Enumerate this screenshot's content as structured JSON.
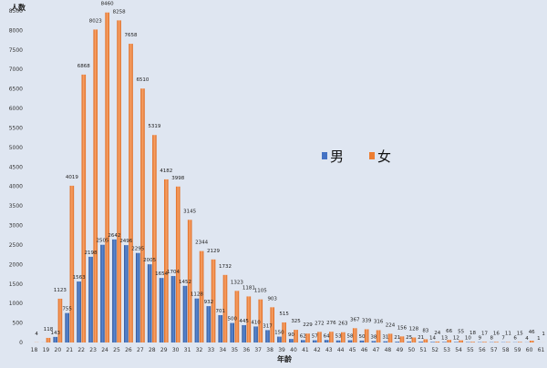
{
  "chart_data": {
    "type": "bar",
    "ylabel": "人数",
    "xlabel": "年龄",
    "ylim": [
      0,
      8500
    ],
    "yticks": [
      0,
      500,
      1000,
      1500,
      2000,
      2500,
      3000,
      3500,
      4000,
      4500,
      5000,
      5500,
      6000,
      6500,
      7000,
      7500,
      8000,
      8500
    ],
    "grid": false,
    "legend_position": "right",
    "categories": [
      "18",
      "19",
      "20",
      "21",
      "22",
      "23",
      "24",
      "25",
      "26",
      "27",
      "28",
      "29",
      "30",
      "31",
      "32",
      "33",
      "34",
      "35",
      "36",
      "37",
      "38",
      "39",
      "40",
      "41",
      "42",
      "43",
      "44",
      "45",
      "46",
      "47",
      "48",
      "49",
      "50",
      "51",
      "52",
      "53",
      "54",
      "55",
      "56",
      "57",
      "58",
      "59",
      "60",
      "61"
    ],
    "series": [
      {
        "name": "男",
        "color": "#4472c4",
        "values": [
          0,
          2,
          143,
          755,
          1563,
          2198,
          2505,
          2642,
          2496,
          2295,
          2005,
          1654,
          1704,
          1452,
          1128,
          932,
          701,
          500,
          445,
          410,
          317,
          150,
          90,
          62,
          57,
          64,
          53,
          58,
          50,
          38,
          31,
          21,
          25,
          21,
          14,
          13,
          12,
          10,
          9,
          8,
          7,
          6,
          4,
          1
        ],
        "labels": [
          "",
          "",
          "143",
          "755",
          "1563",
          "2198",
          "2505",
          "2642",
          "2496",
          "2295",
          "2005",
          "1654",
          "1704",
          "1452",
          "1128",
          "932",
          "701",
          "500",
          "445",
          "410",
          "317",
          "150",
          "90",
          "62",
          "57",
          "64",
          "53",
          "58",
          "50",
          "38",
          "31",
          "21",
          "25",
          "21",
          "14",
          "13",
          "12",
          "10",
          "9",
          "8",
          "7",
          "6",
          "4",
          "1"
        ]
      },
      {
        "name": "女",
        "color": "#ed7d31",
        "values": [
          4,
          118,
          1123,
          4019,
          6868,
          8023,
          8460,
          8258,
          7658,
          6510,
          5319,
          4182,
          3998,
          3145,
          2344,
          2129,
          1732,
          1323,
          1181,
          1105,
          903,
          515,
          325,
          229,
          272,
          276,
          263,
          367,
          339,
          316,
          224,
          156,
          128,
          83,
          24,
          66,
          55,
          18,
          17,
          16,
          11,
          15,
          46,
          1
        ],
        "labels": [
          "4",
          "118",
          "1123",
          "4019",
          "6868",
          "8023",
          "8460",
          "8258",
          "7658",
          "6510",
          "5319",
          "4182",
          "3998",
          "3145",
          "2344",
          "2129",
          "1732",
          "1323",
          "1181",
          "1105",
          "903",
          "515",
          "325",
          "229",
          "272",
          "276",
          "263",
          "367",
          "339",
          "316",
          "224",
          "156",
          "128",
          "83",
          "24",
          "66",
          "55",
          "18",
          "17",
          "16",
          "11",
          "15",
          "46",
          "1"
        ]
      }
    ]
  }
}
